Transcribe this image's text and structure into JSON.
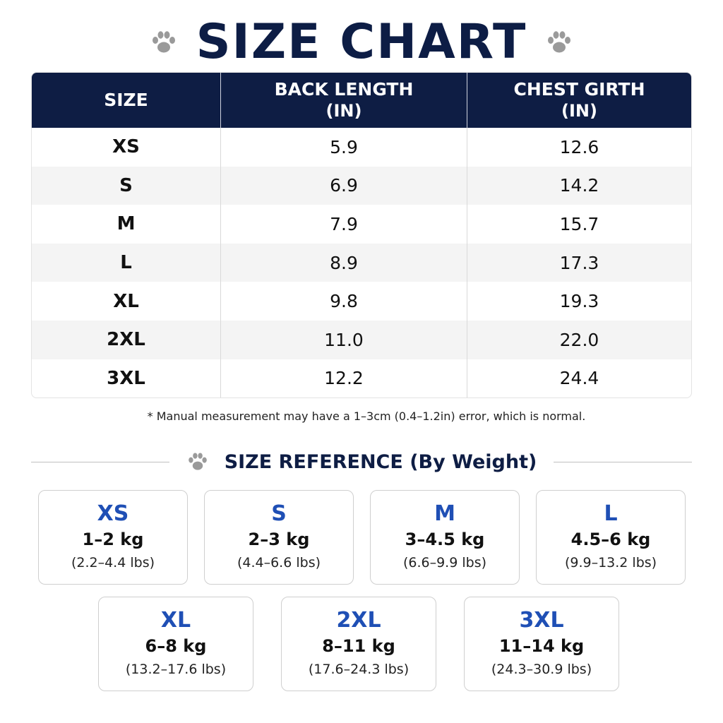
{
  "title": "SIZE CHART",
  "icons": {
    "paw": "paw-print-icon"
  },
  "colors": {
    "header_bg": "#0e1d44",
    "title": "#0d1d45",
    "size_label": "#1f4fb5"
  },
  "table": {
    "headers": [
      {
        "line1": "SIZE",
        "line2": ""
      },
      {
        "line1": "BACK LENGTH",
        "line2": "(IN)"
      },
      {
        "line1": "CHEST GIRTH",
        "line2": "(IN)"
      }
    ],
    "rows": [
      {
        "size": "XS",
        "back": "5.9",
        "chest": "12.6"
      },
      {
        "size": "S",
        "back": "6.9",
        "chest": "14.2"
      },
      {
        "size": "M",
        "back": "7.9",
        "chest": "15.7"
      },
      {
        "size": "L",
        "back": "8.9",
        "chest": "17.3"
      },
      {
        "size": "XL",
        "back": "9.8",
        "chest": "19.3"
      },
      {
        "size": "2XL",
        "back": "11.0",
        "chest": "22.0"
      },
      {
        "size": "3XL",
        "back": "12.2",
        "chest": "24.4"
      }
    ]
  },
  "note": "* Manual measurement may have a 1–3cm (0.4–1.2in) error, which is normal.",
  "reference": {
    "title": "SIZE REFERENCE (By Weight)",
    "cards": [
      {
        "size": "XS",
        "kg": "1–2 kg",
        "lbs": "(2.2–4.4 lbs)"
      },
      {
        "size": "S",
        "kg": "2–3 kg",
        "lbs": "(4.4–6.6 lbs)"
      },
      {
        "size": "M",
        "kg": "3–4.5 kg",
        "lbs": "(6.6–9.9 lbs)"
      },
      {
        "size": "L",
        "kg": "4.5–6 kg",
        "lbs": "(9.9–13.2 lbs)"
      },
      {
        "size": "XL",
        "kg": "6–8 kg",
        "lbs": "(13.2–17.6 lbs)"
      },
      {
        "size": "2XL",
        "kg": "8–11 kg",
        "lbs": "(17.6–24.3 lbs)"
      },
      {
        "size": "3XL",
        "kg": "11–14 kg",
        "lbs": "(24.3–30.9 lbs)"
      }
    ]
  }
}
